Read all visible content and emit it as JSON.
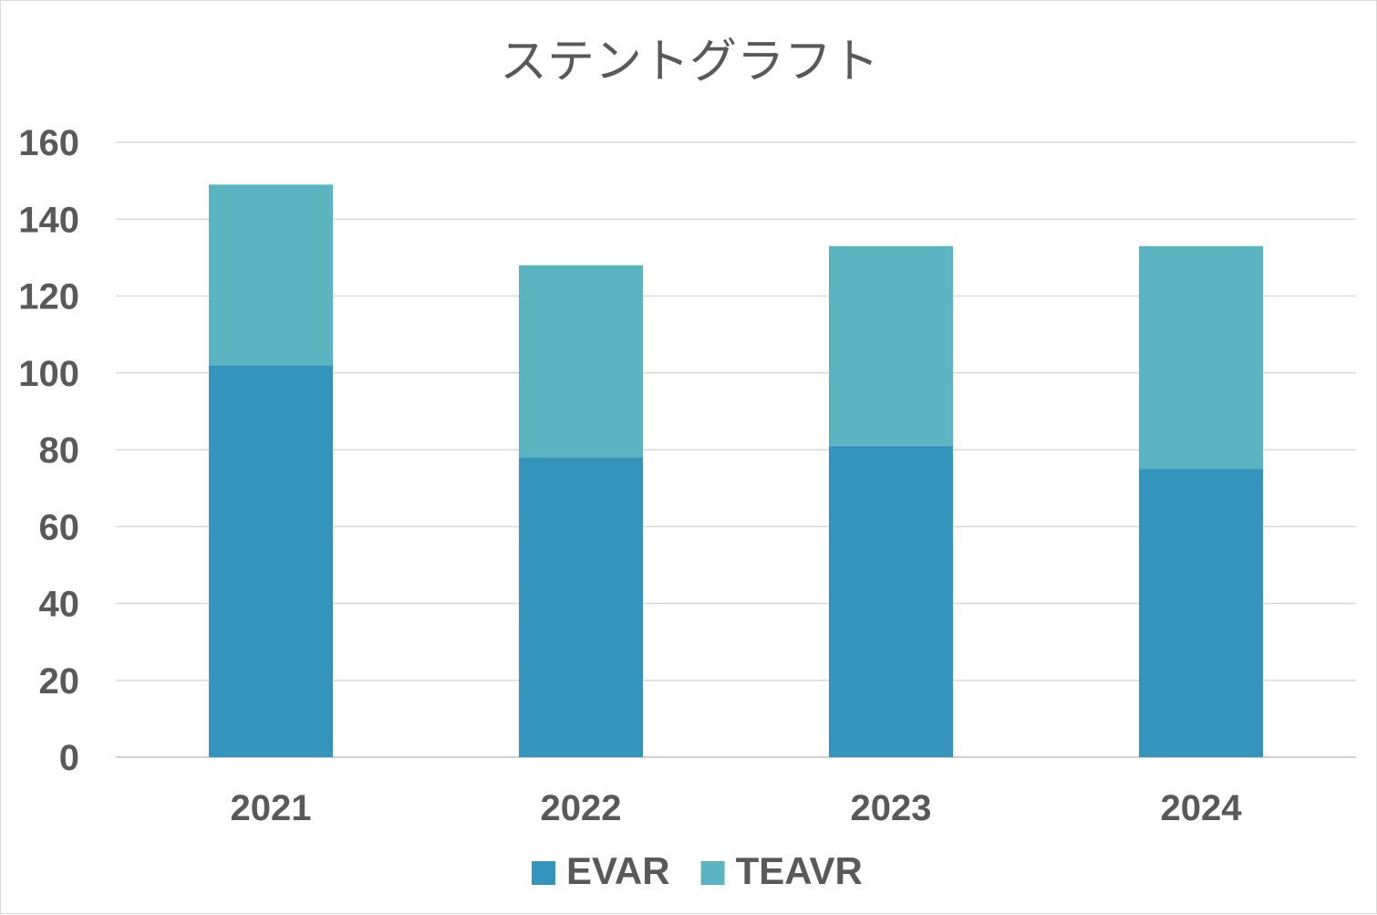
{
  "chart_data": {
    "type": "bar",
    "stacked": true,
    "title": "ステントグラフト",
    "xlabel": "",
    "ylabel": "",
    "categories": [
      "2021",
      "2022",
      "2023",
      "2024"
    ],
    "series": [
      {
        "name": "EVAR",
        "values": [
          102,
          78,
          81,
          75
        ],
        "color": "#3494bb"
      },
      {
        "name": "TEAVR",
        "values": [
          47,
          50,
          52,
          58
        ],
        "color": "#5ab5c1"
      }
    ],
    "ylim": [
      0,
      160
    ],
    "yticks": [
      "0",
      "20",
      "40",
      "60",
      "80",
      "100",
      "120",
      "140",
      "160"
    ],
    "grid": true,
    "legend_position": "bottom"
  }
}
